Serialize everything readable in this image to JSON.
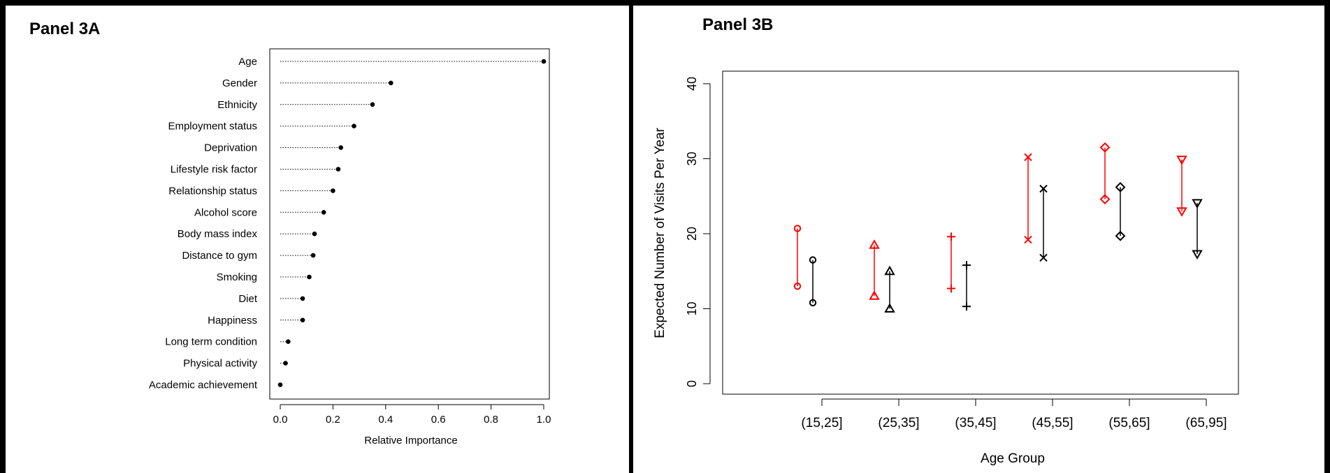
{
  "panels": {
    "a_title": "Panel 3A",
    "b_title": "Panel 3B"
  },
  "chart_data": [
    {
      "type": "scatter",
      "style": "dot-chart",
      "title": "",
      "xlabel": "Relative Importance",
      "ylabel": "",
      "xlim": [
        0,
        1.0
      ],
      "xticks": [
        "0.0",
        "0.2",
        "0.4",
        "0.6",
        "0.8",
        "1.0"
      ],
      "categories": [
        "Age",
        "Gender",
        "Ethnicity",
        "Employment status",
        "Deprivation",
        "Lifestyle risk factor",
        "Relationship status",
        "Alcohol score",
        "Body mass index",
        "Distance to gym",
        "Smoking",
        "Diet",
        "Happiness",
        "Long term condition",
        "Physical activity",
        "Academic achievement"
      ],
      "values": [
        1.0,
        0.42,
        0.35,
        0.28,
        0.23,
        0.22,
        0.2,
        0.165,
        0.13,
        0.125,
        0.11,
        0.085,
        0.085,
        0.03,
        0.02,
        0.0
      ],
      "grid": false,
      "colors": {
        "point": "#000000"
      }
    },
    {
      "type": "scatter",
      "style": "interval-pairs",
      "title": "",
      "xlabel": "Age Group",
      "ylabel": "Expected Number of Visits Per Year",
      "ylim": [
        0,
        40
      ],
      "yticks": [
        "0",
        "10",
        "20",
        "30",
        "40"
      ],
      "categories": [
        "(15,25]",
        "(25,35]",
        "(35,45]",
        "(45,55]",
        "(55,65]",
        "(65,95]"
      ],
      "markers": [
        "circle",
        "triangle-up",
        "plus",
        "cross",
        "diamond",
        "triangle-down"
      ],
      "series": [
        {
          "color": "#ff0000",
          "low": [
            13.0,
            11.7,
            12.7,
            19.2,
            24.6,
            23.0
          ],
          "high": [
            20.7,
            18.5,
            19.6,
            30.2,
            31.5,
            29.9
          ]
        },
        {
          "color": "#000000",
          "low": [
            10.8,
            10.0,
            10.3,
            16.8,
            19.7,
            17.3
          ],
          "high": [
            16.5,
            15.0,
            15.8,
            26.0,
            26.2,
            24.1
          ]
        }
      ],
      "grid": false
    }
  ]
}
